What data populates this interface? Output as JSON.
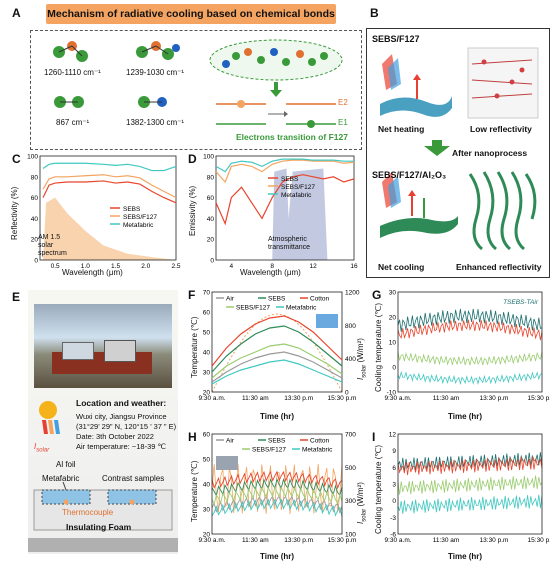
{
  "panelA": {
    "label": "A",
    "title": "Mechanism of radiative cooling based on chemical bonds",
    "bonds": [
      "1260-1110 cm⁻¹",
      "1239-1030 cm⁻¹",
      "867 cm⁻¹",
      "1382-1300 cm⁻¹"
    ],
    "e2": "E2",
    "e1": "E1",
    "transition": "Electrons transition of F127"
  },
  "panelB": {
    "label": "B",
    "top_material": "SEBS/F127",
    "net_heating": "Net heating",
    "low_reflectivity": "Low reflectivity",
    "process": "After nanoprocess",
    "bottom_material": "SEBS/F127/Al₂O₃",
    "net_cooling": "Net cooling",
    "enhanced_reflectivity": "Enhanced reflectivity"
  },
  "panelC": {
    "label": "C",
    "ylabel": "Reflectivity (%)",
    "xlabel": "Wavelength  (μm)",
    "annotation": "AM 1.5 solar spectrum"
  },
  "panelD": {
    "label": "D",
    "ylabel": "Emissivity (%)",
    "xlabel": "Wavelength  (μm)",
    "annotation": "Atmospheric transmittance"
  },
  "panelE": {
    "label": "E",
    "location_title": "Location and weather:",
    "location_lines": [
      "Wuxi city, Jiangsu Province",
      "(31°29’ 29” N, 120°15 ’ 37 ” E)",
      "Date: 3th October 2022",
      "Air temperature: ~18-39 ℃"
    ],
    "isolar": "I",
    "isolar_sub": "solar",
    "al_foil": "Al foil",
    "metafabric": "Metafabric",
    "contrast": "Contrast samples",
    "thermocouple": "Thermocouple",
    "foam": "Insulating Foam"
  },
  "panelF": {
    "label": "F",
    "ylabel": "Temperature (℃)",
    "y2label": "I",
    "y2label_sub": "solar",
    "y2label_unit": " (W/m²)",
    "xlabel": "Time (hr)"
  },
  "panelG": {
    "label": "G",
    "ylabel": "Cooling temperature (℃)",
    "xlabel": "Time (hr)",
    "curve_labels": [
      "T",
      "SEBS",
      "-T",
      "Air"
    ]
  },
  "panelH": {
    "label": "H",
    "ylabel": "Temperature (℃)",
    "y2label": "I",
    "y2label_sub": "solar",
    "y2label_unit": " (W/m²)",
    "xlabel": "Time (hr)"
  },
  "panelI": {
    "label": "I",
    "ylabel": "Cooling temperature (℃)",
    "xlabel": "Time (hr)"
  },
  "chart_data": [
    {
      "id": "C",
      "type": "line",
      "xlabel": "Wavelength  (μm)",
      "ylabel": "Reflectivity (%)",
      "xlim": [
        0.25,
        2.5
      ],
      "ylim": [
        0,
        100
      ],
      "xticks": [
        "0.5",
        "1.0",
        "1.5",
        "2.0",
        "2.5"
      ],
      "yticks": [
        "0",
        "20",
        "40",
        "60",
        "80",
        "100"
      ],
      "series": [
        {
          "name": "SEBS",
          "color": "#e8452c",
          "x": [
            0.3,
            0.4,
            0.5,
            0.7,
            1.0,
            1.3,
            1.5,
            1.7,
            1.9,
            2.1,
            2.3,
            2.5
          ],
          "values": [
            60,
            72,
            74,
            75,
            75,
            76,
            74,
            75,
            73,
            66,
            60,
            55
          ]
        },
        {
          "name": "SEBS/F127",
          "color": "#f4a460",
          "x": [
            0.3,
            0.4,
            0.5,
            0.7,
            1.0,
            1.3,
            1.5,
            1.7,
            1.9,
            2.1,
            2.3,
            2.5
          ],
          "values": [
            68,
            78,
            80,
            80,
            81,
            82,
            80,
            81,
            79,
            72,
            66,
            60
          ]
        },
        {
          "name": "Metafabric",
          "color": "#40c8c0",
          "x": [
            0.3,
            0.4,
            0.5,
            0.7,
            1.0,
            1.3,
            1.5,
            1.7,
            1.9,
            2.1,
            2.3,
            2.5
          ],
          "values": [
            88,
            92,
            93,
            93,
            93,
            92,
            91,
            92,
            90,
            86,
            86,
            90
          ]
        }
      ]
    },
    {
      "id": "D",
      "type": "line",
      "xlabel": "Wavelength  (μm)",
      "ylabel": "Emissivity (%)",
      "xlim": [
        2.5,
        16
      ],
      "ylim": [
        0,
        100
      ],
      "xticks": [
        "4",
        "8",
        "12",
        "16"
      ],
      "yticks": [
        "0",
        "20",
        "40",
        "60",
        "80",
        "100"
      ],
      "series": [
        {
          "name": "SEBS",
          "color": "#e8452c",
          "x": [
            2.5,
            3.4,
            4,
            5,
            6,
            7,
            8,
            9,
            10,
            11,
            12,
            13,
            14,
            15,
            16
          ],
          "values": [
            55,
            35,
            60,
            70,
            55,
            40,
            60,
            75,
            80,
            82,
            80,
            78,
            80,
            75,
            78
          ]
        },
        {
          "name": "SEBS/F127",
          "color": "#f4a460",
          "x": [
            2.5,
            3.4,
            4,
            5,
            6,
            7,
            8,
            9,
            10,
            11,
            12,
            13,
            14,
            15,
            16
          ],
          "values": [
            85,
            75,
            90,
            92,
            90,
            85,
            92,
            95,
            96,
            96,
            95,
            95,
            95,
            93,
            94
          ]
        },
        {
          "name": "Metafabric",
          "color": "#40c8c0",
          "x": [
            2.5,
            3.4,
            4,
            5,
            6,
            7,
            8,
            9,
            10,
            11,
            12,
            13,
            14,
            15,
            16
          ],
          "values": [
            90,
            85,
            93,
            95,
            94,
            90,
            95,
            97,
            97,
            97,
            96,
            96,
            96,
            95,
            95
          ]
        }
      ]
    },
    {
      "id": "F",
      "type": "line",
      "xlabel": "Time (hr)",
      "ylabel": "Temperature (℃)",
      "xticks": [
        "9:30 a.m.",
        "11:30 am",
        "13:30 p.m",
        "15:30 p.m"
      ],
      "yticks": [
        "20",
        "30",
        "40",
        "50",
        "60",
        "70"
      ],
      "y2ticks": [
        "0",
        "400",
        "800",
        "1200"
      ],
      "ylim": [
        20,
        70
      ],
      "series": [
        {
          "name": "Air",
          "color": "#9a9a9a",
          "values": [
            25,
            30,
            34,
            37,
            39,
            40,
            38,
            35,
            31,
            27
          ]
        },
        {
          "name": "SEBS",
          "color": "#2e8b57",
          "values": [
            30,
            38,
            44,
            49,
            52,
            53,
            50,
            45,
            39,
            33
          ]
        },
        {
          "name": "Cotton",
          "color": "#e8452c",
          "values": [
            33,
            42,
            49,
            54,
            57,
            58,
            55,
            50,
            43,
            36
          ]
        },
        {
          "name": "SEBS/F127",
          "color": "#9acd70",
          "values": [
            27,
            33,
            37,
            40,
            43,
            44,
            42,
            38,
            34,
            29
          ]
        },
        {
          "name": "Metafabric",
          "color": "#40c8c0",
          "values": [
            24,
            28,
            31,
            33,
            35,
            36,
            34,
            31,
            28,
            25
          ]
        }
      ]
    },
    {
      "id": "G",
      "type": "line",
      "xlabel": "Time (hr)",
      "ylabel": "Cooling temperature (℃)",
      "xticks": [
        "9:30 a.m.",
        "11:30 am",
        "13:30 p.m",
        "15:30 p.m"
      ],
      "yticks": [
        "-10",
        "0",
        "10",
        "20",
        "30"
      ],
      "ylim": [
        -12,
        30
      ]
    },
    {
      "id": "H",
      "type": "line",
      "xlabel": "Time (hr)",
      "ylabel": "Temperature (℃)",
      "xticks": [
        "9:30 a.m.",
        "11:30 am",
        "13:30 p.m",
        "15:30 p.m"
      ],
      "yticks": [
        "20",
        "30",
        "40",
        "50",
        "60"
      ],
      "y2ticks": [
        "100",
        "300",
        "500",
        "700"
      ],
      "series": [
        {
          "name": "Air"
        },
        {
          "name": "SEBS"
        },
        {
          "name": "Cotton"
        },
        {
          "name": "SEBS/F127"
        },
        {
          "name": "Metafabric"
        }
      ]
    },
    {
      "id": "I",
      "type": "line",
      "xlabel": "Time (hr)",
      "ylabel": "Cooling temperature (℃)",
      "xticks": [
        "9:30 a.m.",
        "11:30 am",
        "13:30 p.m",
        "15:30 p.m"
      ],
      "yticks": [
        "-6",
        "-3",
        "0",
        "3",
        "6",
        "9",
        "12",
        "18"
      ]
    }
  ]
}
